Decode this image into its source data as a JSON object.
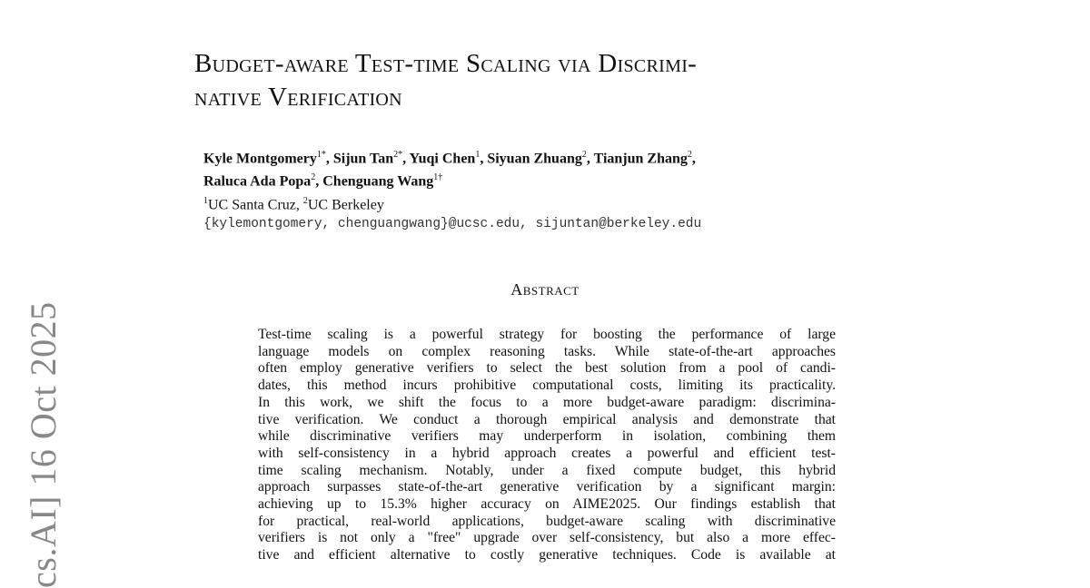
{
  "arxiv_stamp": "cs.AI]  16 Oct 2025",
  "title_lines": [
    "Budget-aware Test-time Scaling via Discrimi-",
    "native Verification"
  ],
  "authors": {
    "line1": [
      {
        "name": "Kyle Montgomery",
        "sup": "1*"
      },
      {
        "name": "Sijun Tan",
        "sup": "2*"
      },
      {
        "name": "Yuqi Chen",
        "sup": "1"
      },
      {
        "name": "Siyuan Zhuang",
        "sup": "2"
      },
      {
        "name": "Tianjun Zhang",
        "sup": "2"
      }
    ],
    "line2": [
      {
        "name": "Raluca Ada Popa",
        "sup": "2"
      },
      {
        "name": "Chenguang Wang",
        "sup": "1†"
      }
    ],
    "affiliations": [
      {
        "sup": "1",
        "name": "UC Santa Cruz"
      },
      {
        "sup": "2",
        "name": "UC Berkeley"
      }
    ],
    "emails": "{kylemontgomery, chenguangwang}@ucsc.edu, sijuntan@berkeley.edu"
  },
  "abstract": {
    "heading": "Abstract",
    "lines": [
      "Test-time scaling is a powerful strategy for boosting the performance of large",
      "language models on complex reasoning tasks. While state-of-the-art approaches",
      "often employ generative verifiers to select the best solution from a pool of candi-",
      "dates, this method incurs prohibitive computational costs, limiting its practicality.",
      "In this work, we shift the focus to a more budget-aware paradigm: discrimina-",
      "tive verification. We conduct a thorough empirical analysis and demonstrate that",
      "while discriminative verifiers may underperform in isolation, combining them",
      "with self-consistency in a hybrid approach creates a powerful and efficient test-",
      "time scaling mechanism.  Notably, under a fixed compute budget, this hybrid",
      "approach surpasses state-of-the-art generative verification by a significant margin:",
      "achieving up to 15.3% higher accuracy on AIME2025. Our findings establish that",
      "for practical, real-world applications, budget-aware scaling with discriminative",
      "verifiers is not only a \"free\" upgrade over self-consistency, but also a more effec-",
      "tive and efficient alternative to costly generative techniques. Code is available at"
    ]
  }
}
